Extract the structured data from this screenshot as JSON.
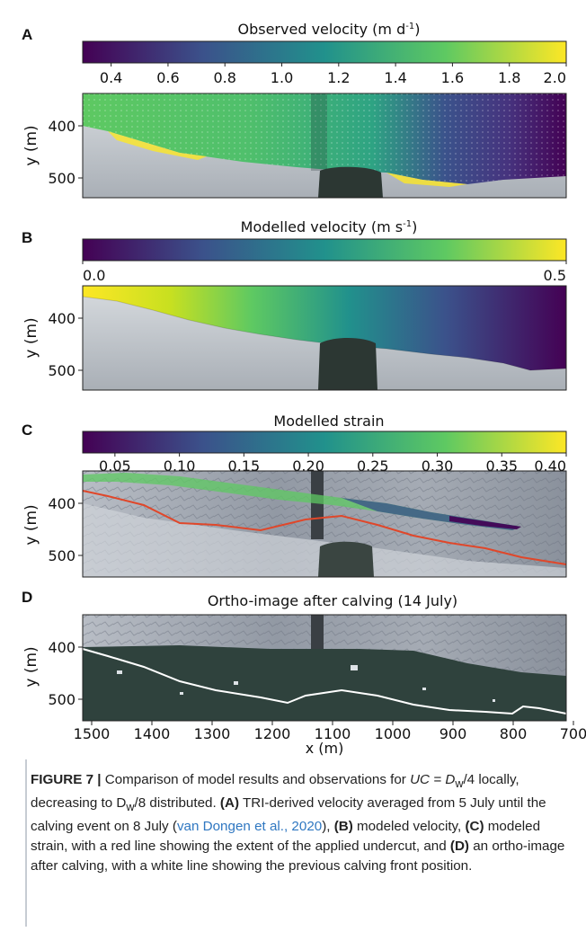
{
  "figure": {
    "panels": [
      {
        "letter": "A",
        "title": "Observed velocity (m d",
        "title_sup": "-1",
        "title_close": ")",
        "colorbar_ticks": [
          "0.4",
          "0.6",
          "0.8",
          "1.0",
          "1.2",
          "1.4",
          "1.6",
          "1.8",
          "2.0"
        ],
        "y_ticks": [
          "400",
          "500"
        ],
        "y_label": "y (m)"
      },
      {
        "letter": "B",
        "title": "Modelled velocity (m s",
        "title_sup": "-1",
        "title_close": ")",
        "colorbar_ticks": [
          "0.0",
          "0.5"
        ],
        "y_ticks": [
          "400",
          "500"
        ],
        "y_label": "y (m)"
      },
      {
        "letter": "C",
        "title": "Modelled strain",
        "title_sup": "",
        "title_close": "",
        "colorbar_ticks": [
          "0.05",
          "0.10",
          "0.15",
          "0.20",
          "0.25",
          "0.30",
          "0.35",
          "0.40"
        ],
        "y_ticks": [
          "400",
          "500"
        ],
        "y_label": "y (m)"
      },
      {
        "letter": "D",
        "title": "Ortho-image after calving (14 July)",
        "title_sup": "",
        "title_close": "",
        "colorbar_ticks": [],
        "y_ticks": [
          "400",
          "500"
        ],
        "y_label": "y (m)"
      }
    ],
    "x_ticks": [
      "1500",
      "1400",
      "1300",
      "1200",
      "1100",
      "1000",
      "900",
      "800",
      "700"
    ],
    "x_label": "x (m)",
    "colors": {
      "viridis": [
        "#440154",
        "#3b528b",
        "#21918c",
        "#5ec962",
        "#fde725"
      ],
      "undercut_line": "#e0472a",
      "front_line": "#ffffff",
      "water": "#2f423d",
      "ice": "#c9ced3"
    }
  },
  "caption": {
    "label": "FIGURE 7 |",
    "p1": " Comparison of model results and observations for ",
    "uc": "UC",
    "eq1": " = D",
    "sub_w1": "w",
    "p2": "/4 locally, decreasing to D",
    "sub_w2": "w",
    "p3": "/8 distributed. ",
    "a": "(A)",
    "p4": " TRI-derived velocity averaged from 5 July until the calving event on 8 July (",
    "ref": "van Dongen et al., 2020",
    "p5": "), ",
    "b": "(B)",
    "p6": " modeled velocity, ",
    "c": "(C)",
    "p7": " modeled strain, with a red line showing the extent of the applied undercut, and ",
    "d": "(D)",
    "p8": " an ortho-image after calving, with a white line showing the previous calving front position."
  }
}
